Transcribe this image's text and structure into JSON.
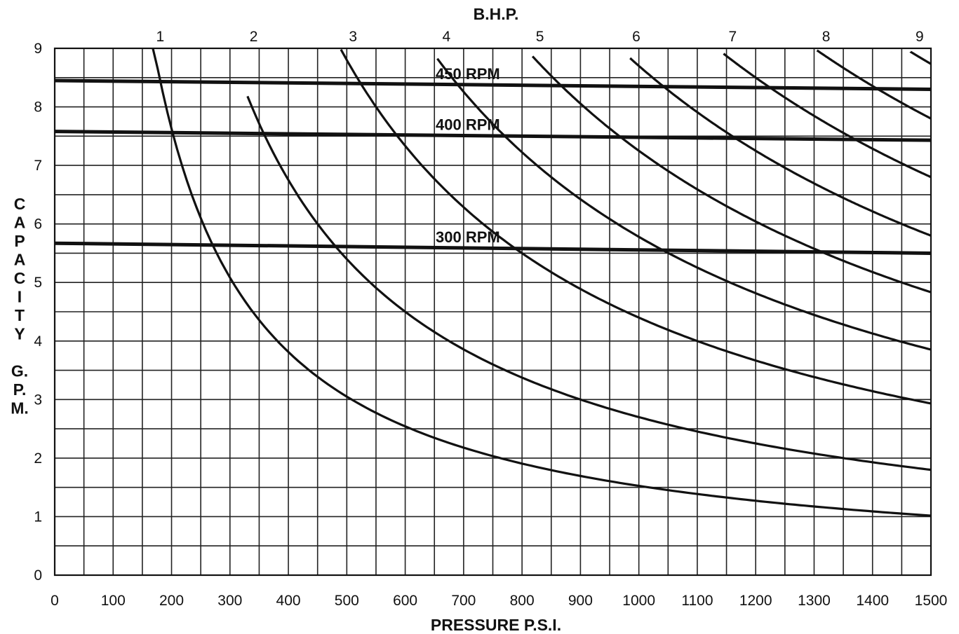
{
  "chart_data": {
    "type": "line",
    "title": "B.H.P.",
    "xlabel": "PRESSURE P.S.I.",
    "ylabel": [
      "C",
      "A",
      "P",
      "A",
      "C",
      "I",
      "T",
      "Y",
      "",
      "G.",
      "P.",
      "M."
    ],
    "xlim": [
      0,
      1500
    ],
    "ylim": [
      0,
      9
    ],
    "x_ticks": [
      0,
      100,
      200,
      300,
      400,
      500,
      600,
      700,
      800,
      900,
      1000,
      1100,
      1200,
      1300,
      1400,
      1500
    ],
    "y_ticks": [
      0,
      1,
      2,
      3,
      4,
      5,
      6,
      7,
      8,
      9
    ],
    "grid": true,
    "bhp_labels": [
      {
        "label": "1",
        "x": 165
      },
      {
        "label": "2",
        "x": 325
      },
      {
        "label": "3",
        "x": 495
      },
      {
        "label": "4",
        "x": 655
      },
      {
        "label": "5",
        "x": 815
      },
      {
        "label": "6",
        "x": 980
      },
      {
        "label": "7",
        "x": 1145
      },
      {
        "label": "8",
        "x": 1305
      },
      {
        "label": "9",
        "x": 1465
      }
    ],
    "bhp_series": [
      {
        "name": "1",
        "k": 1525,
        "x_start": 168,
        "x_end": 1500
      },
      {
        "name": "2",
        "k": 2700,
        "x_start": 330,
        "x_end": 1500
      },
      {
        "name": "3",
        "k": 4400,
        "x_start": 490,
        "x_end": 1500
      },
      {
        "name": "4",
        "k": 5780,
        "x_start": 655,
        "x_end": 1500
      },
      {
        "name": "5",
        "k": 7250,
        "x_start": 818,
        "x_end": 1500
      },
      {
        "name": "6",
        "k": 8700,
        "x_start": 985,
        "x_end": 1500
      },
      {
        "name": "7",
        "k": 10200,
        "x_start": 1145,
        "x_end": 1500
      },
      {
        "name": "8",
        "k": 11700,
        "x_start": 1305,
        "x_end": 1500
      },
      {
        "name": "9",
        "k": 13100,
        "x_start": 1465,
        "x_end": 1500
      }
    ],
    "rpm_lines": [
      {
        "label": "450 RPM",
        "y_start": 8.45,
        "y_end": 8.3,
        "label_x": 700
      },
      {
        "label": "400 RPM",
        "y_start": 7.58,
        "y_end": 7.43,
        "label_x": 700
      },
      {
        "label": "300 RPM",
        "y_start": 5.67,
        "y_end": 5.5,
        "label_x": 700
      }
    ]
  }
}
